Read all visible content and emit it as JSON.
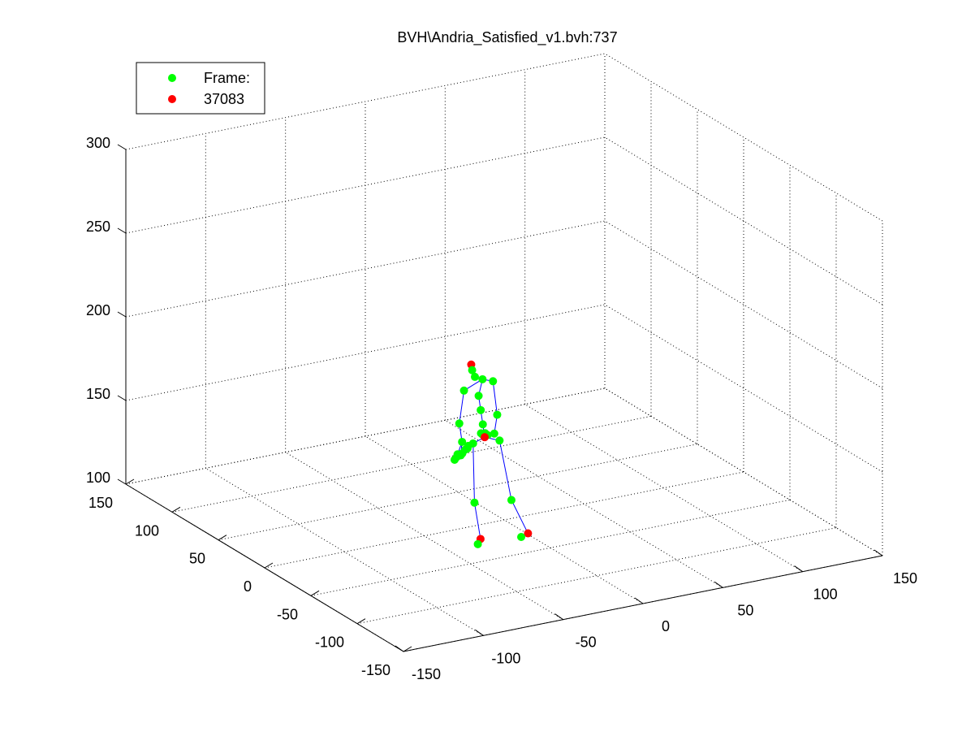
{
  "colors": {
    "background": "#ffffff",
    "grid": "#000000",
    "axis": "#000000",
    "bone": "#0000ff",
    "marker_green": "#00ff00",
    "marker_red": "#ff0000"
  },
  "chart_data": {
    "type": "scatter",
    "projection": "3d",
    "title": "BVH\\Andria_Satisfied_v1.bvh:737",
    "grid": true,
    "legend": {
      "placement": "top-left",
      "entries": [
        {
          "label": "Frame:",
          "color": "#00ff00",
          "marker": "filled-circle"
        },
        {
          "label": "37083",
          "color": "#ff0000",
          "marker": "filled-circle"
        }
      ]
    },
    "x_axis": {
      "ticks": [
        -150,
        -100,
        -50,
        0,
        50,
        100,
        150
      ],
      "tick_labels": [
        "-150",
        "-100",
        "-50",
        "0",
        "50",
        "100",
        "150"
      ],
      "range": [
        -150,
        150
      ]
    },
    "y_axis": {
      "ticks": [
        -150,
        -100,
        -50,
        0,
        50,
        100,
        150
      ],
      "tick_labels": [
        "-150",
        "-100",
        "-50",
        "0",
        "50",
        "100",
        "150"
      ],
      "range": [
        -150,
        150
      ]
    },
    "z_axis": {
      "ticks": [
        100,
        150,
        200,
        250,
        300
      ],
      "tick_labels": [
        "100",
        "150",
        "200",
        "250",
        "300"
      ],
      "range": [
        100,
        300
      ]
    },
    "joints": [
      {
        "name": "head-top",
        "x": 13,
        "y": 58,
        "z": 171,
        "color": "red"
      },
      {
        "name": "head",
        "x": 13,
        "y": 57,
        "z": 168,
        "color": "green"
      },
      {
        "name": "neck-upper",
        "x": 13,
        "y": 54,
        "z": 165,
        "color": "green"
      },
      {
        "name": "neck",
        "x": 16,
        "y": 51,
        "z": 164,
        "color": "green"
      },
      {
        "name": "left-shoulder",
        "x": 5,
        "y": 52,
        "z": 159,
        "color": "green"
      },
      {
        "name": "left-elbow",
        "x": -2,
        "y": 45,
        "z": 143,
        "color": "green"
      },
      {
        "name": "left-wrist",
        "x": -2,
        "y": 42,
        "z": 133,
        "color": "green"
      },
      {
        "name": "left-hand-a",
        "x": -6,
        "y": 40,
        "z": 127,
        "color": "green"
      },
      {
        "name": "left-hand-b",
        "x": -7,
        "y": 39,
        "z": 126,
        "color": "green"
      },
      {
        "name": "left-hand-c",
        "x": -9,
        "y": 38,
        "z": 125,
        "color": "green"
      },
      {
        "name": "left-hand-d",
        "x": -4,
        "y": 40,
        "z": 126,
        "color": "green"
      },
      {
        "name": "left-hand-e",
        "x": -3,
        "y": 40,
        "z": 127,
        "color": "green"
      },
      {
        "name": "left-hand-f",
        "x": 0,
        "y": 42,
        "z": 128,
        "color": "green"
      },
      {
        "name": "left-hand-g",
        "x": 2,
        "y": 43,
        "z": 128,
        "color": "green"
      },
      {
        "name": "left-hand-h",
        "x": 3,
        "y": 44,
        "z": 129,
        "color": "green"
      },
      {
        "name": "right-shoulder",
        "x": 22,
        "y": 50,
        "z": 162,
        "color": "green"
      },
      {
        "name": "right-elbow",
        "x": 20,
        "y": 42,
        "z": 145,
        "color": "green"
      },
      {
        "name": "right-wrist",
        "x": 17,
        "y": 40,
        "z": 135,
        "color": "green"
      },
      {
        "name": "right-hand-a",
        "x": 14,
        "y": 42,
        "z": 134,
        "color": "green"
      },
      {
        "name": "right-hand-b",
        "x": 13,
        "y": 43,
        "z": 135,
        "color": "green"
      },
      {
        "name": "right-hand-c",
        "x": 12,
        "y": 44,
        "z": 134,
        "color": "green"
      },
      {
        "name": "right-hand-d",
        "x": 11,
        "y": 44,
        "z": 135,
        "color": "green"
      },
      {
        "name": "spine-upper",
        "x": 13,
        "y": 50,
        "z": 155,
        "color": "green"
      },
      {
        "name": "spine",
        "x": 12,
        "y": 46,
        "z": 148,
        "color": "green"
      },
      {
        "name": "spine-lower",
        "x": 11,
        "y": 42,
        "z": 141,
        "color": "green"
      },
      {
        "name": "hips",
        "x": 11,
        "y": 40,
        "z": 134,
        "color": "red"
      },
      {
        "name": "left-hip",
        "x": 2,
        "y": 37,
        "z": 133,
        "color": "green"
      },
      {
        "name": "left-knee",
        "x": -7,
        "y": 20,
        "z": 105,
        "color": "green"
      },
      {
        "name": "left-ankle",
        "x": -9,
        "y": 10,
        "z": 87,
        "color": "red"
      },
      {
        "name": "left-toe",
        "x": -13,
        "y": 6,
        "z": 86,
        "color": "green"
      },
      {
        "name": "right-hip",
        "x": 18,
        "y": 36,
        "z": 132,
        "color": "green"
      },
      {
        "name": "right-knee",
        "x": 15,
        "y": 18,
        "z": 103,
        "color": "green"
      },
      {
        "name": "right-ankle",
        "x": 19,
        "y": 7,
        "z": 86,
        "color": "red"
      },
      {
        "name": "right-toe",
        "x": 13,
        "y": 4,
        "z": 86,
        "color": "green"
      }
    ],
    "bones": [
      [
        "hips",
        "spine-lower"
      ],
      [
        "spine-lower",
        "spine"
      ],
      [
        "spine",
        "spine-upper"
      ],
      [
        "spine-upper",
        "neck"
      ],
      [
        "neck",
        "neck-upper"
      ],
      [
        "neck-upper",
        "head"
      ],
      [
        "head",
        "head-top"
      ],
      [
        "neck",
        "left-shoulder"
      ],
      [
        "left-shoulder",
        "left-elbow"
      ],
      [
        "left-elbow",
        "left-wrist"
      ],
      [
        "left-wrist",
        "left-hand-a"
      ],
      [
        "left-wrist",
        "left-hand-d"
      ],
      [
        "neck",
        "right-shoulder"
      ],
      [
        "right-shoulder",
        "right-elbow"
      ],
      [
        "right-elbow",
        "right-wrist"
      ],
      [
        "right-wrist",
        "right-hand-a"
      ],
      [
        "hips",
        "left-hip"
      ],
      [
        "left-hip",
        "left-knee"
      ],
      [
        "left-knee",
        "left-ankle"
      ],
      [
        "left-ankle",
        "left-toe"
      ],
      [
        "hips",
        "right-hip"
      ],
      [
        "right-hip",
        "right-knee"
      ],
      [
        "right-knee",
        "right-ankle"
      ],
      [
        "right-ankle",
        "right-toe"
      ]
    ]
  }
}
